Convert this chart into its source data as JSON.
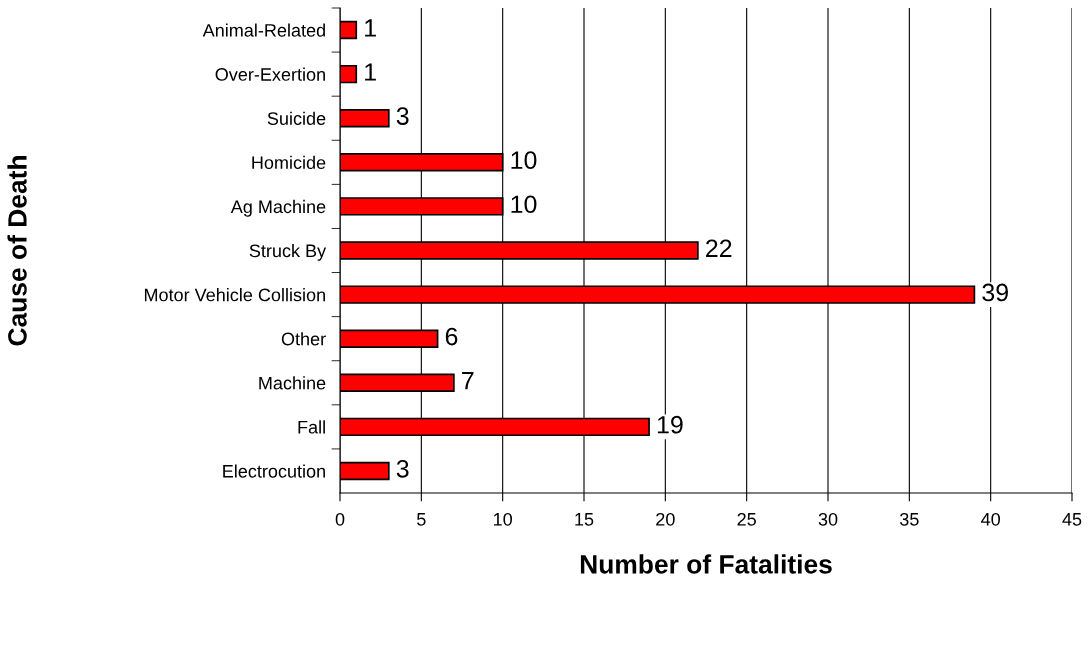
{
  "chart_data": {
    "type": "bar",
    "orientation": "horizontal",
    "xlabel": "Number of Fatalities",
    "ylabel": "Cause of Death",
    "categories": [
      "Animal-Related",
      "Over-Exertion",
      "Suicide",
      "Homicide",
      "Ag Machine",
      "Struck By",
      "Motor Vehicle Collision",
      "Other",
      "Machine",
      "Fall",
      "Electrocution"
    ],
    "values": [
      1,
      1,
      3,
      10,
      10,
      22,
      39,
      6,
      7,
      19,
      3
    ],
    "color": "#ff0000",
    "xlim": [
      0,
      45
    ],
    "xticks": [
      0,
      5,
      10,
      15,
      20,
      25,
      30,
      35,
      40,
      45
    ],
    "grid": "x",
    "data_labels": true,
    "legend": false
  }
}
